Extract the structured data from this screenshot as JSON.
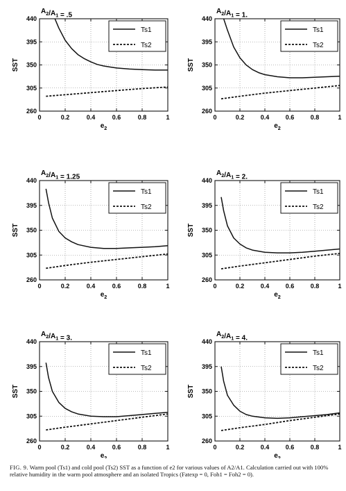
{
  "chart_data": [
    {
      "type": "line",
      "title": "A2/A1 = .5",
      "xlabel": "e2",
      "ylabel": "SST",
      "xlim": [
        0,
        1
      ],
      "ylim": [
        260,
        440
      ],
      "xticks": [
        "0",
        "0.2",
        "0.4",
        "0.6",
        "0.8",
        "1"
      ],
      "yticks": [
        "260",
        "305",
        "350",
        "395",
        "440"
      ],
      "grid": true,
      "legend_position": "top-right",
      "series": [
        {
          "name": "Ts1",
          "style": "solid",
          "x": [
            0.12,
            0.15,
            0.2,
            0.25,
            0.3,
            0.35,
            0.4,
            0.45,
            0.5,
            0.55,
            0.6,
            0.7,
            0.8,
            0.9,
            1.0
          ],
          "y": [
            440,
            422,
            398,
            382,
            370,
            362,
            356,
            351,
            348,
            346,
            344,
            342,
            341,
            340,
            340
          ]
        },
        {
          "name": "Ts2",
          "style": "dashed",
          "x": [
            0.05,
            0.2,
            0.4,
            0.6,
            0.8,
            1.0
          ],
          "y": [
            289,
            292,
            296,
            300,
            304,
            307
          ]
        }
      ]
    },
    {
      "type": "line",
      "title": "A2/A1 = 1.",
      "xlabel": "e2",
      "ylabel": "SST",
      "xlim": [
        0,
        1
      ],
      "ylim": [
        260,
        440
      ],
      "xticks": [
        "0",
        "0.2",
        "0.4",
        "0.6",
        "0.8",
        "1"
      ],
      "yticks": [
        "260",
        "305",
        "350",
        "395",
        "440"
      ],
      "grid": true,
      "legend_position": "top-right",
      "series": [
        {
          "name": "Ts1",
          "style": "solid",
          "x": [
            0.07,
            0.1,
            0.15,
            0.2,
            0.25,
            0.3,
            0.35,
            0.4,
            0.5,
            0.6,
            0.7,
            0.8,
            0.9,
            1.0
          ],
          "y": [
            440,
            418,
            385,
            364,
            350,
            341,
            335,
            331,
            327,
            325,
            325,
            326,
            327,
            328
          ]
        },
        {
          "name": "Ts2",
          "style": "dashed",
          "x": [
            0.05,
            0.2,
            0.4,
            0.6,
            0.8,
            1.0
          ],
          "y": [
            284,
            289,
            295,
            300,
            305,
            310
          ]
        }
      ]
    },
    {
      "type": "line",
      "title": "A2/A1 = 1.25",
      "xlabel": "e2",
      "ylabel": "SST",
      "xlim": [
        0,
        1
      ],
      "ylim": [
        260,
        440
      ],
      "xticks": [
        "0",
        "0.2",
        "0.4",
        "0.6",
        "0.8",
        "1"
      ],
      "yticks": [
        "260",
        "305",
        "350",
        "395",
        "440"
      ],
      "grid": true,
      "legend_position": "top-right",
      "series": [
        {
          "name": "Ts1",
          "style": "solid",
          "x": [
            0.05,
            0.07,
            0.1,
            0.15,
            0.2,
            0.25,
            0.3,
            0.4,
            0.5,
            0.6,
            0.7,
            0.8,
            0.9,
            1.0
          ],
          "y": [
            425,
            400,
            372,
            348,
            336,
            329,
            324,
            319,
            317,
            317,
            318,
            319,
            320,
            322
          ]
        },
        {
          "name": "Ts2",
          "style": "dashed",
          "x": [
            0.05,
            0.2,
            0.4,
            0.6,
            0.8,
            1.0
          ],
          "y": [
            281,
            286,
            292,
            297,
            302,
            307
          ]
        }
      ]
    },
    {
      "type": "line",
      "title": "A2/A1 = 2.",
      "xlabel": "e2",
      "ylabel": "SST",
      "xlim": [
        0,
        1
      ],
      "ylim": [
        260,
        440
      ],
      "xticks": [
        "0",
        "0.2",
        "0.4",
        "0.6",
        "0.8",
        "1"
      ],
      "yticks": [
        "260",
        "305",
        "350",
        "395",
        "440"
      ],
      "grid": true,
      "legend_position": "top-right",
      "series": [
        {
          "name": "Ts1",
          "style": "solid",
          "x": [
            0.05,
            0.07,
            0.1,
            0.15,
            0.2,
            0.25,
            0.3,
            0.4,
            0.5,
            0.6,
            0.7,
            0.8,
            0.9,
            1.0
          ],
          "y": [
            410,
            385,
            358,
            336,
            325,
            318,
            314,
            310,
            309,
            309,
            310,
            312,
            314,
            316
          ]
        },
        {
          "name": "Ts2",
          "style": "dashed",
          "x": [
            0.05,
            0.2,
            0.4,
            0.6,
            0.8,
            1.0
          ],
          "y": [
            280,
            285,
            291,
            297,
            303,
            308
          ]
        }
      ]
    },
    {
      "type": "line",
      "title": "A2/A1 = 3.",
      "xlabel": "e2",
      "ylabel": "SST",
      "xlim": [
        0,
        1
      ],
      "ylim": [
        260,
        440
      ],
      "xticks": [
        "0",
        "0.2",
        "0.4",
        "0.6",
        "0.8",
        "1"
      ],
      "yticks": [
        "260",
        "305",
        "350",
        "395",
        "440"
      ],
      "grid": true,
      "legend_position": "top-right",
      "series": [
        {
          "name": "Ts1",
          "style": "solid",
          "x": [
            0.05,
            0.07,
            0.1,
            0.15,
            0.2,
            0.25,
            0.3,
            0.4,
            0.5,
            0.6,
            0.7,
            0.8,
            0.9,
            1.0
          ],
          "y": [
            402,
            375,
            350,
            330,
            319,
            313,
            309,
            305,
            304,
            304,
            306,
            308,
            310,
            312
          ]
        },
        {
          "name": "Ts2",
          "style": "dashed",
          "x": [
            0.05,
            0.2,
            0.4,
            0.6,
            0.8,
            1.0
          ],
          "y": [
            280,
            285,
            291,
            297,
            303,
            309
          ]
        }
      ]
    },
    {
      "type": "line",
      "title": "A2/A1 = 4.",
      "xlabel": "e2",
      "ylabel": "SST",
      "xlim": [
        0,
        1
      ],
      "ylim": [
        260,
        440
      ],
      "xticks": [
        "0",
        "0.2",
        "0.4",
        "0.6",
        "0.8",
        "1"
      ],
      "yticks": [
        "260",
        "305",
        "350",
        "395",
        "440"
      ],
      "grid": true,
      "legend_position": "top-right",
      "series": [
        {
          "name": "Ts1",
          "style": "solid",
          "x": [
            0.05,
            0.07,
            0.1,
            0.15,
            0.2,
            0.25,
            0.3,
            0.4,
            0.5,
            0.6,
            0.7,
            0.8,
            0.9,
            1.0
          ],
          "y": [
            395,
            368,
            343,
            325,
            314,
            308,
            305,
            302,
            301,
            302,
            304,
            306,
            308,
            311
          ]
        },
        {
          "name": "Ts2",
          "style": "dashed",
          "x": [
            0.05,
            0.2,
            0.4,
            0.6,
            0.8,
            1.0
          ],
          "y": [
            279,
            284,
            290,
            297,
            303,
            309
          ]
        }
      ]
    }
  ],
  "caption": {
    "label": "FIG. 9.",
    "text": "Warm pool (Ts1) and cold pool (Ts2) SST as a function of e2 for various values of A2/A1. Calculation carried out with 100% relative humidity in the warm pool atmosphere and an isolated Tropics (Fatexp = 0, Foh1 = Foh2 = 0)."
  }
}
